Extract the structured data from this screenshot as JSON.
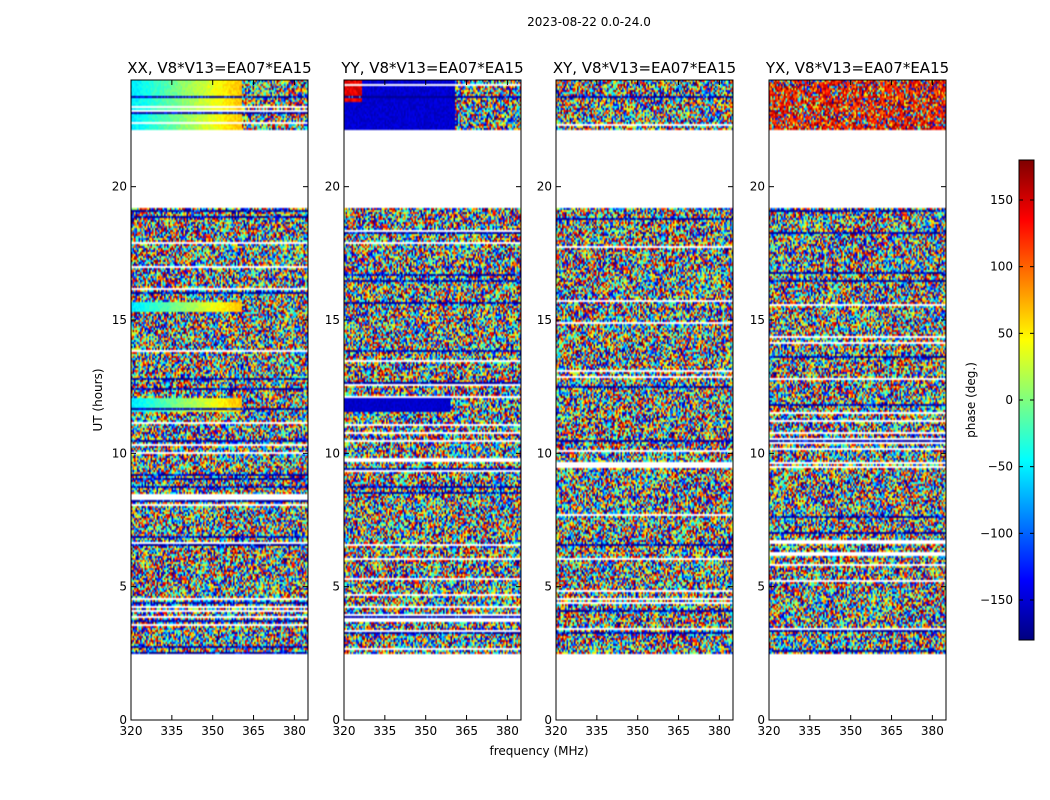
{
  "suptitle": "2023-08-22 0.0-24.0",
  "chart_data": [
    {
      "type": "heatmap",
      "title": "XX, V8*V13=EA07*EA15",
      "xlabel": "",
      "ylabel": "UT (hours)",
      "xlim": [
        320,
        385
      ],
      "ylim": [
        0,
        24
      ],
      "xticks": [
        "320",
        "335",
        "350",
        "365",
        "380"
      ],
      "yticks": [
        "0",
        "5",
        "10",
        "15",
        "20"
      ],
      "data_coverage_hours": [
        [
          2.5,
          19.2
        ],
        [
          22.1,
          24.0
        ]
      ],
      "pattern": "noisy phase with a smooth gradient in the top block and at ~11.8 h and ~15.5 h"
    },
    {
      "type": "heatmap",
      "title": "YY, V8*V13=EA07*EA15",
      "xlabel": "frequency (MHz)",
      "ylabel": "",
      "xlim": [
        320,
        385
      ],
      "ylim": [
        0,
        24
      ],
      "xticks": [
        "320",
        "335",
        "350",
        "365",
        "380"
      ],
      "yticks": [
        "0",
        "5",
        "10",
        "15",
        "20"
      ],
      "data_coverage_hours": [
        [
          2.5,
          19.2
        ],
        [
          22.1,
          24.0
        ]
      ],
      "pattern": "noisy phase with mostly -180 deg (dark blue) rows near the top and at ~11.8 h"
    },
    {
      "type": "heatmap",
      "title": "XY, V8*V13=EA07*EA15",
      "xlabel": "",
      "ylabel": "",
      "xlim": [
        320,
        385
      ],
      "ylim": [
        0,
        24
      ],
      "xticks": [
        "320",
        "335",
        "350",
        "365",
        "380"
      ],
      "yticks": [
        "0",
        "5",
        "10",
        "15",
        "20"
      ],
      "data_coverage_hours": [
        [
          2.5,
          19.2
        ],
        [
          22.1,
          24.0
        ]
      ],
      "pattern": "mostly noisy phase"
    },
    {
      "type": "heatmap",
      "title": "YX, V8*V13=EA07*EA15",
      "xlabel": "",
      "ylabel": "",
      "xlim": [
        320,
        385
      ],
      "ylim": [
        0,
        24
      ],
      "xticks": [
        "320",
        "335",
        "350",
        "365",
        "380"
      ],
      "yticks": [
        "0",
        "5",
        "10",
        "15",
        "20"
      ],
      "data_coverage_hours": [
        [
          2.5,
          19.2
        ],
        [
          22.1,
          24.0
        ]
      ],
      "pattern": "mostly noisy phase, reddish in the top block"
    }
  ],
  "colorbar": {
    "label": "phase (deg.)",
    "colormap": "jet",
    "range": [
      -180,
      180
    ],
    "ticks": [
      {
        "value": 150,
        "label": "150"
      },
      {
        "value": 100,
        "label": "100"
      },
      {
        "value": 50,
        "label": "50"
      },
      {
        "value": 0,
        "label": "0"
      },
      {
        "value": -50,
        "label": "−50"
      },
      {
        "value": -100,
        "label": "−100"
      },
      {
        "value": -150,
        "label": "−150"
      }
    ]
  }
}
